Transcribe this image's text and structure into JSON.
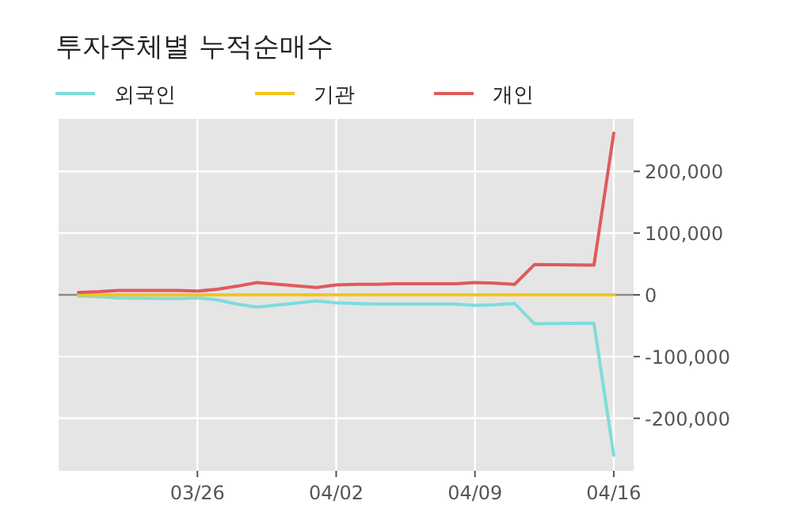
{
  "chart_data": {
    "type": "line",
    "title": "투자주체별 누적순매수",
    "x": [
      "--03-20",
      "--03-21",
      "--03-22",
      "--03-25",
      "--03-26",
      "--03-27",
      "--03-28",
      "--03-29",
      "--04-01",
      "--04-02",
      "--04-03",
      "--04-04",
      "--04-05",
      "--04-08",
      "--04-09",
      "--04-10",
      "--04-11",
      "--04-12",
      "--04-15",
      "--04-16"
    ],
    "series": [
      {
        "name": "외국인",
        "color": "#7fdcdc",
        "values": [
          -2000,
          -3000,
          -5000,
          -6000,
          -5000,
          -8000,
          -15000,
          -20000,
          -10000,
          -13000,
          -14000,
          -15000,
          -15000,
          -15000,
          -17000,
          -16000,
          -14000,
          -47000,
          -46000,
          -260000
        ]
      },
      {
        "name": "기관",
        "color": "#f5c518",
        "values": [
          0,
          0,
          0,
          0,
          0,
          0,
          0,
          0,
          0,
          0,
          0,
          0,
          0,
          0,
          0,
          0,
          0,
          0,
          0,
          0
        ]
      },
      {
        "name": "개인",
        "color": "#e05a5a",
        "values": [
          4000,
          5000,
          7000,
          7000,
          6000,
          9000,
          14000,
          20000,
          12000,
          16000,
          17000,
          17000,
          18000,
          18000,
          20000,
          19000,
          17000,
          49000,
          48000,
          262000
        ]
      }
    ],
    "xlim": [
      "--03-19",
      "--04-17"
    ],
    "xticks": [
      {
        "value": "--03-26",
        "label": "03/26"
      },
      {
        "value": "--04-02",
        "label": "04/02"
      },
      {
        "value": "--04-09",
        "label": "04/09"
      },
      {
        "value": "--04-16",
        "label": "04/16"
      }
    ],
    "ylim": [
      -285000,
      285000
    ],
    "yticks": [
      {
        "value": -200000,
        "label": "-200,000"
      },
      {
        "value": -100000,
        "label": "-100,000"
      },
      0,
      {
        "value": 100000,
        "label": "100,000"
      },
      {
        "value": 200000,
        "label": "200,000"
      }
    ],
    "ref_lines": [
      {
        "axis": "y",
        "value": 0,
        "color": "#888888"
      }
    ],
    "grid": true,
    "legend": "top",
    "line_style": "solid",
    "marker": "none"
  }
}
